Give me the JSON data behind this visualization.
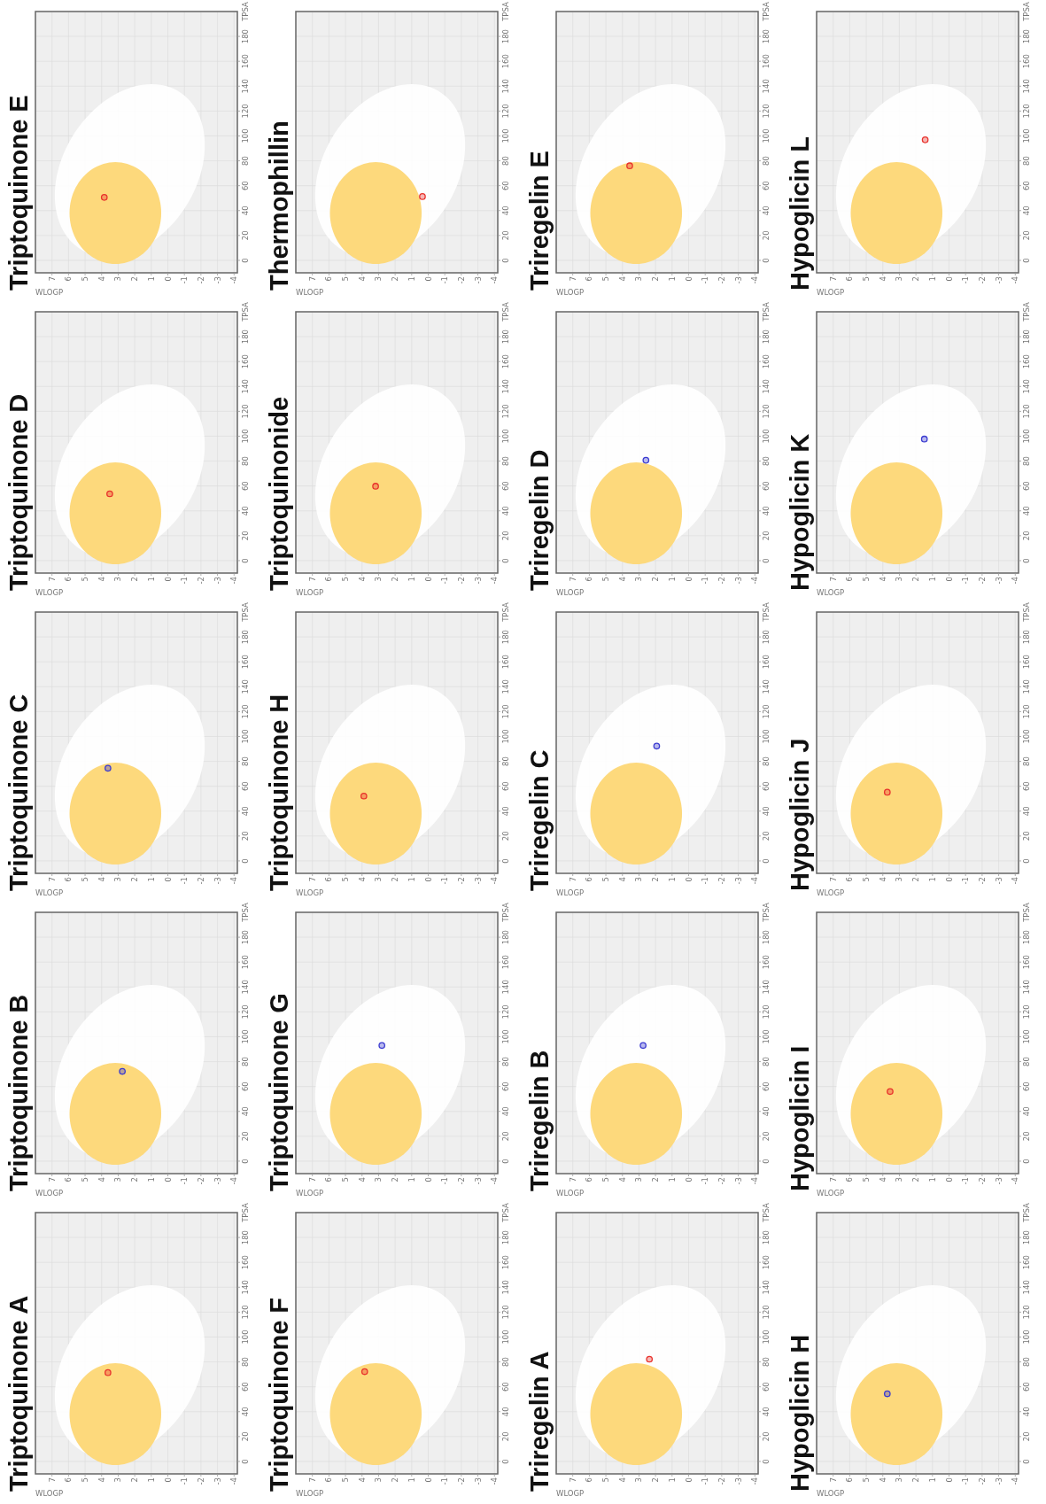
{
  "chart_data": [
    {
      "type": "scatter",
      "title": "Triptoquinone A",
      "xlabel": "WLOGP",
      "ylabel": "TPSA",
      "x": [
        3.62
      ],
      "series": [
        {
          "color": "#e8322c",
          "values": [
            71.4
          ]
        }
      ],
      "xlim": [
        8,
        -4.2
      ],
      "ylim": [
        -10,
        200
      ],
      "xticks": [
        7,
        6,
        5,
        4,
        3,
        2,
        1,
        0,
        -1,
        -2,
        -3,
        -4
      ],
      "yticks": [
        0,
        20,
        40,
        60,
        80,
        100,
        120,
        140,
        160,
        180
      ],
      "grid": true,
      "marker": "circle"
    },
    {
      "type": "scatter",
      "title": "Triptoquinone B",
      "xlabel": "WLOGP",
      "ylabel": "TPSA",
      "x": [
        2.75
      ],
      "series": [
        {
          "color": "#3a3ad0",
          "values": [
            72.2
          ]
        }
      ],
      "xlim": [
        8,
        -4.2
      ],
      "ylim": [
        -10,
        200
      ],
      "xticks": [
        7,
        6,
        5,
        4,
        3,
        2,
        1,
        0,
        -1,
        -2,
        -3,
        -4
      ],
      "yticks": [
        0,
        20,
        40,
        60,
        80,
        100,
        120,
        140,
        160,
        180
      ],
      "grid": true,
      "marker": "circle"
    },
    {
      "type": "scatter",
      "title": "Triptoquinone C",
      "xlabel": "WLOGP",
      "ylabel": "TPSA",
      "x": [
        3.62
      ],
      "series": [
        {
          "color": "#3a3ad0",
          "values": [
            74.5
          ]
        }
      ],
      "xlim": [
        8,
        -4.2
      ],
      "ylim": [
        -10,
        200
      ],
      "xticks": [
        7,
        6,
        5,
        4,
        3,
        2,
        1,
        0,
        -1,
        -2,
        -3,
        -4
      ],
      "yticks": [
        0,
        20,
        40,
        60,
        80,
        100,
        120,
        140,
        160,
        180
      ],
      "grid": true,
      "marker": "circle"
    },
    {
      "type": "scatter",
      "title": "Triptoquinone D",
      "xlabel": "WLOGP",
      "ylabel": "TPSA",
      "x": [
        3.51
      ],
      "series": [
        {
          "color": "#e8322c",
          "values": [
            53.7
          ]
        }
      ],
      "xlim": [
        8,
        -4.2
      ],
      "ylim": [
        -10,
        200
      ],
      "xticks": [
        7,
        6,
        5,
        4,
        3,
        2,
        1,
        0,
        -1,
        -2,
        -3,
        -4
      ],
      "yticks": [
        0,
        20,
        40,
        60,
        80,
        100,
        120,
        140,
        160,
        180
      ],
      "grid": true,
      "marker": "circle"
    },
    {
      "type": "scatter",
      "title": "Triptoquinone E",
      "xlabel": "WLOGP",
      "ylabel": "TPSA",
      "x": [
        3.84
      ],
      "series": [
        {
          "color": "#e8322c",
          "values": [
            50.6
          ]
        }
      ],
      "xlim": [
        8,
        -4.2
      ],
      "ylim": [
        -10,
        200
      ],
      "xticks": [
        7,
        6,
        5,
        4,
        3,
        2,
        1,
        0,
        -1,
        -2,
        -3,
        -4
      ],
      "yticks": [
        0,
        20,
        40,
        60,
        80,
        100,
        120,
        140,
        160,
        180
      ],
      "grid": true,
      "marker": "circle"
    },
    {
      "type": "scatter",
      "title": "Triptoquinone F",
      "xlabel": "WLOGP",
      "ylabel": "TPSA",
      "x": [
        3.84
      ],
      "series": [
        {
          "color": "#e8322c",
          "values": [
            72.2
          ]
        }
      ],
      "xlim": [
        8,
        -4.2
      ],
      "ylim": [
        -10,
        200
      ],
      "xticks": [
        7,
        6,
        5,
        4,
        3,
        2,
        1,
        0,
        -1,
        -2,
        -3,
        -4
      ],
      "yticks": [
        0,
        20,
        40,
        60,
        80,
        100,
        120,
        140,
        160,
        180
      ],
      "grid": true,
      "marker": "circle"
    },
    {
      "type": "scatter",
      "title": "Triptoquinone G",
      "xlabel": "WLOGP",
      "ylabel": "TPSA",
      "x": [
        2.8
      ],
      "series": [
        {
          "color": "#3a3ad0",
          "values": [
            93.0
          ]
        }
      ],
      "xlim": [
        8,
        -4.2
      ],
      "ylim": [
        -10,
        200
      ],
      "xticks": [
        7,
        6,
        5,
        4,
        3,
        2,
        1,
        0,
        -1,
        -2,
        -3,
        -4
      ],
      "yticks": [
        0,
        20,
        40,
        60,
        80,
        100,
        120,
        140,
        160,
        180
      ],
      "grid": true,
      "marker": "circle"
    },
    {
      "type": "scatter",
      "title": "Triptoquinone H",
      "xlabel": "WLOGP",
      "ylabel": "TPSA",
      "x": [
        3.89
      ],
      "series": [
        {
          "color": "#e8322c",
          "values": [
            52.1
          ]
        }
      ],
      "xlim": [
        8,
        -4.2
      ],
      "ylim": [
        -10,
        200
      ],
      "xticks": [
        7,
        6,
        5,
        4,
        3,
        2,
        1,
        0,
        -1,
        -2,
        -3,
        -4
      ],
      "yticks": [
        0,
        20,
        40,
        60,
        80,
        100,
        120,
        140,
        160,
        180
      ],
      "grid": true,
      "marker": "circle"
    },
    {
      "type": "scatter",
      "title": "Triptoquinonide",
      "xlabel": "WLOGP",
      "ylabel": "TPSA",
      "x": [
        3.18
      ],
      "series": [
        {
          "color": "#e8322c",
          "values": [
            59.8
          ]
        }
      ],
      "xlim": [
        8,
        -4.2
      ],
      "ylim": [
        -10,
        200
      ],
      "xticks": [
        7,
        6,
        5,
        4,
        3,
        2,
        1,
        0,
        -1,
        -2,
        -3,
        -4
      ],
      "yticks": [
        0,
        20,
        40,
        60,
        80,
        100,
        120,
        140,
        160,
        180
      ],
      "grid": true,
      "marker": "circle"
    },
    {
      "type": "scatter",
      "title": "Thermophillin",
      "xlabel": "WLOGP",
      "ylabel": "TPSA",
      "x": [
        0.35
      ],
      "series": [
        {
          "color": "#e8322c",
          "values": [
            51.3
          ]
        }
      ],
      "xlim": [
        8,
        -4.2
      ],
      "ylim": [
        -10,
        200
      ],
      "xticks": [
        7,
        6,
        5,
        4,
        3,
        2,
        1,
        0,
        -1,
        -2,
        -3,
        -4
      ],
      "yticks": [
        0,
        20,
        40,
        60,
        80,
        100,
        120,
        140,
        160,
        180
      ],
      "grid": true,
      "marker": "circle"
    },
    {
      "type": "scatter",
      "title": "Triregelin A",
      "xlabel": "WLOGP",
      "ylabel": "TPSA",
      "x": [
        2.37
      ],
      "series": [
        {
          "color": "#e8322c",
          "values": [
            82.2
          ]
        }
      ],
      "xlim": [
        8,
        -4.2
      ],
      "ylim": [
        -10,
        200
      ],
      "xticks": [
        7,
        6,
        5,
        4,
        3,
        2,
        1,
        0,
        -1,
        -2,
        -3,
        -4
      ],
      "yticks": [
        0,
        20,
        40,
        60,
        80,
        100,
        120,
        140,
        160,
        180
      ],
      "grid": true,
      "marker": "circle"
    },
    {
      "type": "scatter",
      "title": "Triregelin B",
      "xlabel": "WLOGP",
      "ylabel": "TPSA",
      "x": [
        2.75
      ],
      "series": [
        {
          "color": "#3a3ad0",
          "values": [
            93.0
          ]
        }
      ],
      "xlim": [
        8,
        -4.2
      ],
      "ylim": [
        -10,
        200
      ],
      "xticks": [
        7,
        6,
        5,
        4,
        3,
        2,
        1,
        0,
        -1,
        -2,
        -3,
        -4
      ],
      "yticks": [
        0,
        20,
        40,
        60,
        80,
        100,
        120,
        140,
        160,
        180
      ],
      "grid": true,
      "marker": "circle"
    },
    {
      "type": "scatter",
      "title": "Triregelin C",
      "xlabel": "WLOGP",
      "ylabel": "TPSA",
      "x": [
        1.93
      ],
      "series": [
        {
          "color": "#3a3ad0",
          "values": [
            92.3
          ]
        }
      ],
      "xlim": [
        8,
        -4.2
      ],
      "ylim": [
        -10,
        200
      ],
      "xticks": [
        7,
        6,
        5,
        4,
        3,
        2,
        1,
        0,
        -1,
        -2,
        -3,
        -4
      ],
      "yticks": [
        0,
        20,
        40,
        60,
        80,
        100,
        120,
        140,
        160,
        180
      ],
      "grid": true,
      "marker": "circle"
    },
    {
      "type": "scatter",
      "title": "Triregelin D",
      "xlabel": "WLOGP",
      "ylabel": "TPSA",
      "x": [
        2.58
      ],
      "series": [
        {
          "color": "#3a3ad0",
          "values": [
            80.7
          ]
        }
      ],
      "xlim": [
        8,
        -4.2
      ],
      "ylim": [
        -10,
        200
      ],
      "xticks": [
        7,
        6,
        5,
        4,
        3,
        2,
        1,
        0,
        -1,
        -2,
        -3,
        -4
      ],
      "yticks": [
        0,
        20,
        40,
        60,
        80,
        100,
        120,
        140,
        160,
        180
      ],
      "grid": true,
      "marker": "circle"
    },
    {
      "type": "scatter",
      "title": "Triregelin E",
      "xlabel": "WLOGP",
      "ylabel": "TPSA",
      "x": [
        3.56
      ],
      "series": [
        {
          "color": "#e8322c",
          "values": [
            76.0
          ]
        }
      ],
      "xlim": [
        8,
        -4.2
      ],
      "ylim": [
        -10,
        200
      ],
      "xticks": [
        7,
        6,
        5,
        4,
        3,
        2,
        1,
        0,
        -1,
        -2,
        -3,
        -4
      ],
      "yticks": [
        0,
        20,
        40,
        60,
        80,
        100,
        120,
        140,
        160,
        180
      ],
      "grid": true,
      "marker": "circle"
    },
    {
      "type": "scatter",
      "title": "Hypoglicin H",
      "xlabel": "WLOGP",
      "ylabel": "TPSA",
      "x": [
        3.73
      ],
      "series": [
        {
          "color": "#3a3ad0",
          "values": [
            54.4
          ]
        }
      ],
      "xlim": [
        8,
        -4.2
      ],
      "ylim": [
        -10,
        200
      ],
      "xticks": [
        7,
        6,
        5,
        4,
        3,
        2,
        1,
        0,
        -1,
        -2,
        -3,
        -4
      ],
      "yticks": [
        0,
        20,
        40,
        60,
        80,
        100,
        120,
        140,
        160,
        180
      ],
      "grid": true,
      "marker": "circle"
    },
    {
      "type": "scatter",
      "title": "Hypoglicin I",
      "xlabel": "WLOGP",
      "ylabel": "TPSA",
      "x": [
        3.56
      ],
      "series": [
        {
          "color": "#e8322c",
          "values": [
            56.0
          ]
        }
      ],
      "xlim": [
        8,
        -4.2
      ],
      "ylim": [
        -10,
        200
      ],
      "xticks": [
        7,
        6,
        5,
        4,
        3,
        2,
        1,
        0,
        -1,
        -2,
        -3,
        -4
      ],
      "yticks": [
        0,
        20,
        40,
        60,
        80,
        100,
        120,
        140,
        160,
        180
      ],
      "grid": true,
      "marker": "circle"
    },
    {
      "type": "scatter",
      "title": "Hypoglicin J",
      "xlabel": "WLOGP",
      "ylabel": "TPSA",
      "x": [
        3.73
      ],
      "series": [
        {
          "color": "#e8322c",
          "values": [
            55.2
          ]
        }
      ],
      "xlim": [
        8,
        -4.2
      ],
      "ylim": [
        -10,
        200
      ],
      "xticks": [
        7,
        6,
        5,
        4,
        3,
        2,
        1,
        0,
        -1,
        -2,
        -3,
        -4
      ],
      "yticks": [
        0,
        20,
        40,
        60,
        80,
        100,
        120,
        140,
        160,
        180
      ],
      "grid": true,
      "marker": "circle"
    },
    {
      "type": "scatter",
      "title": "Hypoglicin K",
      "xlabel": "WLOGP",
      "ylabel": "TPSA",
      "x": [
        1.49
      ],
      "series": [
        {
          "color": "#3a3ad0",
          "values": [
            97.7
          ]
        }
      ],
      "xlim": [
        8,
        -4.2
      ],
      "ylim": [
        -10,
        200
      ],
      "xticks": [
        7,
        6,
        5,
        4,
        3,
        2,
        1,
        0,
        -1,
        -2,
        -3,
        -4
      ],
      "yticks": [
        0,
        20,
        40,
        60,
        80,
        100,
        120,
        140,
        160,
        180
      ],
      "grid": true,
      "marker": "circle"
    },
    {
      "type": "scatter",
      "title": "Hypoglicin L",
      "xlabel": "WLOGP",
      "ylabel": "TPSA",
      "x": [
        1.44
      ],
      "series": [
        {
          "color": "#e8322c",
          "values": [
            96.9
          ]
        }
      ],
      "xlim": [
        8,
        -4.2
      ],
      "ylim": [
        -10,
        200
      ],
      "xticks": [
        7,
        6,
        5,
        4,
        3,
        2,
        1,
        0,
        -1,
        -2,
        -3,
        -4
      ],
      "yticks": [
        0,
        20,
        40,
        60,
        80,
        100,
        120,
        140,
        160,
        180
      ],
      "grid": true,
      "marker": "circle"
    }
  ]
}
